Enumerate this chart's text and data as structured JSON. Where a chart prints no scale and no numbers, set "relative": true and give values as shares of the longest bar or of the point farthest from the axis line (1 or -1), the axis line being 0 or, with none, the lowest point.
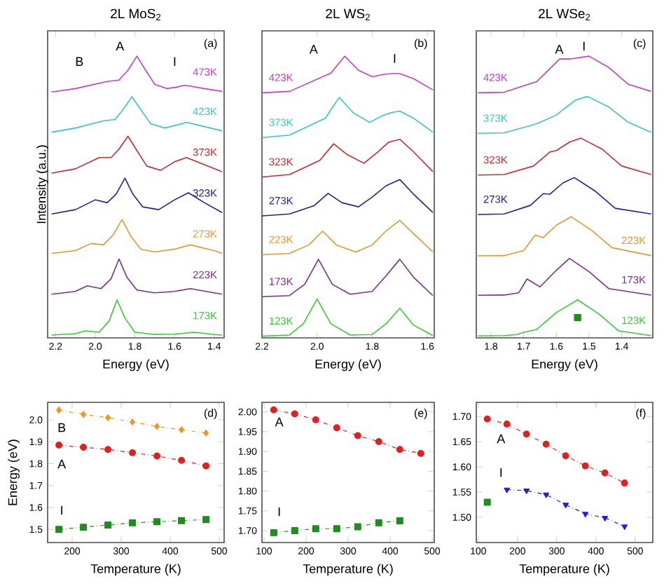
{
  "chart_data": [
    {
      "type": "line",
      "relative": true,
      "title": "2L MoS$_{2}$",
      "xlabel": "Energy (eV)",
      "ylabel": "Intensity (a.u.)",
      "xlim": [
        2.24,
        1.35
      ],
      "xticks": [
        2.2,
        {
          "value": 2.0,
          "label": "2.0"
        },
        1.8,
        1.6,
        1.4
      ],
      "annotations": [
        "(a)",
        "B",
        "A",
        "I"
      ],
      "series": [
        {
          "name": "173K",
          "color": "#33cc33",
          "x": [
            2.22,
            2.1,
            2.05,
            1.98,
            1.93,
            1.89,
            1.85,
            1.8,
            1.7,
            1.6,
            1.5,
            1.4,
            1.36
          ],
          "values": [
            0.01,
            0.015,
            0.025,
            0.02,
            0.06,
            0.135,
            0.07,
            0.02,
            0.012,
            0.013,
            0.02,
            0.012,
            0.01
          ]
        },
        {
          "name": "223K",
          "color": "#7b2d8e",
          "x": [
            2.22,
            2.1,
            2.04,
            1.97,
            1.92,
            1.88,
            1.84,
            1.79,
            1.7,
            1.6,
            1.52,
            1.4,
            1.36
          ],
          "values": [
            0.155,
            0.165,
            0.185,
            0.175,
            0.21,
            0.28,
            0.215,
            0.17,
            0.16,
            0.165,
            0.175,
            0.16,
            0.155
          ]
        },
        {
          "name": "273K",
          "color": "#e8962e",
          "x": [
            2.22,
            2.1,
            2.02,
            1.96,
            1.91,
            1.865,
            1.82,
            1.77,
            1.7,
            1.6,
            1.52,
            1.4,
            1.36
          ],
          "values": [
            0.3,
            0.31,
            0.335,
            0.33,
            0.365,
            0.42,
            0.36,
            0.315,
            0.305,
            0.315,
            0.33,
            0.31,
            0.3
          ]
        },
        {
          "name": "323K",
          "color": "#1f1f9e",
          "x": [
            2.22,
            2.1,
            2.0,
            1.94,
            1.895,
            1.85,
            1.81,
            1.76,
            1.68,
            1.6,
            1.53,
            1.45,
            1.36
          ],
          "values": [
            0.44,
            0.455,
            0.49,
            0.48,
            0.51,
            0.567,
            0.51,
            0.465,
            0.455,
            0.49,
            0.515,
            0.48,
            0.445
          ]
        },
        {
          "name": "373K",
          "color": "#d02828",
          "x": [
            2.22,
            2.1,
            1.98,
            1.92,
            1.88,
            1.835,
            1.79,
            1.74,
            1.67,
            1.6,
            1.54,
            1.45,
            1.36
          ],
          "values": [
            0.585,
            0.6,
            0.64,
            0.64,
            0.67,
            0.716,
            0.665,
            0.61,
            0.595,
            0.625,
            0.64,
            0.615,
            0.59
          ]
        },
        {
          "name": "423K",
          "color": "#33c6c6",
          "x": [
            2.22,
            2.1,
            1.96,
            1.9,
            1.86,
            1.815,
            1.77,
            1.72,
            1.65,
            1.59,
            1.54,
            1.45,
            1.36
          ],
          "values": [
            0.73,
            0.745,
            0.77,
            0.775,
            0.81,
            0.856,
            0.81,
            0.76,
            0.745,
            0.755,
            0.765,
            0.75,
            0.735
          ]
        },
        {
          "name": "473K",
          "color": "#c83cc8",
          "x": [
            2.22,
            2.1,
            1.94,
            1.88,
            1.835,
            1.79,
            1.75,
            1.7,
            1.64,
            1.59,
            1.55,
            1.45,
            1.36
          ],
          "values": [
            0.873,
            0.885,
            0.91,
            0.915,
            0.95,
            1.0,
            0.955,
            0.9,
            0.885,
            0.89,
            0.897,
            0.885,
            0.875
          ]
        }
      ]
    },
    {
      "type": "line",
      "relative": true,
      "title": "2L WS$_{2}$",
      "xlabel": "Energy (eV)",
      "xlim": [
        2.2,
        1.575
      ],
      "xticks": [
        2.2,
        {
          "value": 2.0,
          "label": "2.0"
        },
        1.8,
        1.6
      ],
      "annotations": [
        "(b)",
        "A",
        "I"
      ],
      "series": [
        {
          "name": "123K",
          "color": "#33cc33",
          "x": [
            2.2,
            2.1,
            2.05,
            2.0,
            1.95,
            1.88,
            1.8,
            1.75,
            1.7,
            1.65,
            1.58
          ],
          "values": [
            0.006,
            0.01,
            0.05,
            0.138,
            0.05,
            0.01,
            0.012,
            0.05,
            0.105,
            0.045,
            0.008
          ]
        },
        {
          "name": "173K",
          "color": "#7b2d8e",
          "x": [
            2.2,
            2.1,
            2.045,
            1.995,
            1.945,
            1.88,
            1.8,
            1.75,
            1.7,
            1.65,
            1.58
          ],
          "values": [
            0.146,
            0.15,
            0.19,
            0.279,
            0.19,
            0.155,
            0.165,
            0.22,
            0.279,
            0.215,
            0.15
          ]
        },
        {
          "name": "223K",
          "color": "#e8962e",
          "x": [
            2.2,
            2.1,
            2.03,
            1.98,
            1.93,
            1.86,
            1.8,
            1.75,
            1.7,
            1.65,
            1.58
          ],
          "values": [
            0.295,
            0.3,
            0.33,
            0.379,
            0.33,
            0.305,
            0.33,
            0.38,
            0.417,
            0.37,
            0.305
          ]
        },
        {
          "name": "273K",
          "color": "#1f1f9e",
          "x": [
            2.2,
            2.1,
            2.01,
            1.96,
            1.91,
            1.85,
            1.8,
            1.75,
            1.7,
            1.65,
            1.58
          ],
          "values": [
            0.433,
            0.44,
            0.47,
            0.513,
            0.48,
            0.465,
            0.5,
            0.54,
            0.562,
            0.51,
            0.445
          ]
        },
        {
          "name": "323K",
          "color": "#d02828",
          "x": [
            2.2,
            2.1,
            1.99,
            1.94,
            1.89,
            1.83,
            1.78,
            1.74,
            1.7,
            1.65,
            1.58
          ],
          "values": [
            0.571,
            0.58,
            0.63,
            0.689,
            0.65,
            0.62,
            0.66,
            0.695,
            0.705,
            0.66,
            0.59
          ]
        },
        {
          "name": "373K",
          "color": "#33c6c6",
          "x": [
            2.2,
            2.1,
            1.97,
            1.92,
            1.87,
            1.81,
            1.76,
            1.73,
            1.7,
            1.65,
            1.58
          ],
          "values": [
            0.711,
            0.72,
            0.78,
            0.854,
            0.8,
            0.765,
            0.79,
            0.8,
            0.805,
            0.78,
            0.73
          ]
        },
        {
          "name": "423K",
          "color": "#c83cc8",
          "x": [
            2.2,
            2.1,
            1.95,
            1.9,
            1.85,
            1.8,
            1.76,
            1.73,
            1.7,
            1.65,
            1.58
          ],
          "values": [
            0.87,
            0.875,
            0.94,
            1.0,
            0.95,
            0.927,
            0.935,
            0.938,
            0.938,
            0.92,
            0.88
          ]
        }
      ]
    },
    {
      "type": "line",
      "relative": true,
      "title": "2L WSe$_{2}$",
      "xlabel": "Energy (eV)",
      "xlim": [
        1.845,
        1.305
      ],
      "xticks": [
        1.8,
        1.7,
        1.6,
        1.5,
        1.4
      ],
      "annotations": [
        "(c)",
        "A",
        "I"
      ],
      "series": [
        {
          "name": "123K",
          "color": "#33cc33",
          "x": [
            1.84,
            1.76,
            1.72,
            1.7,
            1.66,
            1.6,
            1.535,
            1.47,
            1.41,
            1.31
          ],
          "values": [
            0.007,
            0.008,
            0.012,
            0.02,
            0.03,
            0.09,
            0.135,
            0.085,
            0.025,
            0.008
          ]
        },
        {
          "name": "173K",
          "color": "#7b2d8e",
          "x": [
            1.84,
            1.76,
            1.715,
            1.69,
            1.65,
            1.6,
            1.56,
            1.5,
            1.44,
            1.31
          ],
          "values": [
            0.151,
            0.152,
            0.16,
            0.209,
            0.181,
            0.24,
            0.282,
            0.235,
            0.175,
            0.152
          ]
        },
        {
          "name": "223K",
          "color": "#e8962e",
          "x": [
            1.84,
            1.76,
            1.7,
            1.665,
            1.64,
            1.6,
            1.555,
            1.49,
            1.43,
            1.31
          ],
          "values": [
            0.291,
            0.292,
            0.31,
            0.365,
            0.356,
            0.4,
            0.43,
            0.38,
            0.32,
            0.292
          ]
        },
        {
          "name": "273K",
          "color": "#1f1f9e",
          "x": [
            1.84,
            1.76,
            1.68,
            1.64,
            1.62,
            1.58,
            1.545,
            1.48,
            1.42,
            1.31
          ],
          "values": [
            0.438,
            0.44,
            0.47,
            0.512,
            0.51,
            0.55,
            0.569,
            0.52,
            0.46,
            0.44
          ]
        },
        {
          "name": "323K",
          "color": "#d02828",
          "x": [
            1.84,
            1.76,
            1.67,
            1.62,
            1.6,
            1.56,
            1.525,
            1.46,
            1.4,
            1.31
          ],
          "values": [
            0.578,
            0.58,
            0.61,
            0.66,
            0.665,
            0.695,
            0.709,
            0.67,
            0.61,
            0.58
          ]
        },
        {
          "name": "373K",
          "color": "#33c6c6",
          "x": [
            1.84,
            1.76,
            1.66,
            1.6,
            1.58,
            1.54,
            1.505,
            1.44,
            1.38,
            1.31
          ],
          "values": [
            0.726,
            0.728,
            0.76,
            0.791,
            0.81,
            0.845,
            0.857,
            0.82,
            0.765,
            0.73
          ]
        },
        {
          "name": "423K",
          "color": "#c83cc8",
          "x": [
            1.84,
            1.76,
            1.66,
            1.59,
            1.56,
            1.53,
            1.5,
            1.44,
            1.38,
            1.31
          ],
          "values": [
            0.87,
            0.872,
            0.91,
            0.99,
            0.99,
            0.995,
            1.0,
            0.96,
            0.9,
            0.875
          ]
        },
        {
          "type": "scatter",
          "marker": "square",
          "color": "#1e8c1e",
          "x": [
            1.535
          ],
          "values": [
            0.072
          ]
        }
      ]
    },
    {
      "type": "line",
      "xlabel": "Temperature (K)",
      "ylabel": "Energy (eV)",
      "xlim": [
        150,
        510
      ],
      "ylim": [
        1.44,
        2.08
      ],
      "xticks": [
        200,
        300,
        400,
        500
      ],
      "yticks": [
        1.5,
        1.6,
        1.7,
        1.8,
        1.9,
        {
          "value": 2.0,
          "label": "2.0"
        }
      ],
      "line_style": "dashed",
      "annotations": [
        "(d)",
        "B",
        "A",
        "I"
      ],
      "series": [
        {
          "color": "#f0961e",
          "marker": "diamond",
          "x": [
            173,
            223,
            273,
            323,
            373,
            423,
            473
          ],
          "values": [
            2.045,
            2.025,
            2.01,
            1.99,
            1.97,
            1.955,
            1.94
          ]
        },
        {
          "color": "#e02020",
          "marker": "circle",
          "x": [
            173,
            223,
            273,
            323,
            373,
            423,
            473
          ],
          "values": [
            1.885,
            1.875,
            1.865,
            1.85,
            1.835,
            1.815,
            1.79
          ]
        },
        {
          "color": "#1e8c1e",
          "marker": "square",
          "x": [
            173,
            223,
            273,
            323,
            373,
            423,
            473
          ],
          "values": [
            1.5,
            1.51,
            1.52,
            1.53,
            1.535,
            1.54,
            1.545
          ]
        }
      ]
    },
    {
      "type": "line",
      "xlabel": "Temperature (K)",
      "xlim": [
        95,
        505
      ],
      "ylim": [
        1.67,
        2.024
      ],
      "xticks": [
        100,
        200,
        300,
        400,
        500
      ],
      "yticks": [
        {
          "value": 1.7,
          "label": "1.70"
        },
        1.75,
        {
          "value": 1.8,
          "label": "1.80"
        },
        1.85,
        {
          "value": 1.9,
          "label": "1.90"
        },
        1.95,
        {
          "value": 2.0,
          "label": "2.00"
        }
      ],
      "line_style": "dashed",
      "annotations": [
        "(e)",
        "A",
        "I"
      ],
      "series": [
        {
          "color": "#e02020",
          "marker": "circle",
          "x": [
            123,
            173,
            223,
            273,
            323,
            373,
            423,
            473
          ],
          "values": [
            2.005,
            1.995,
            1.98,
            1.96,
            1.94,
            1.925,
            1.905,
            1.895
          ]
        },
        {
          "color": "#1e8c1e",
          "marker": "square",
          "x": [
            123,
            173,
            223,
            273,
            323,
            373,
            423
          ],
          "values": [
            1.695,
            1.7,
            1.705,
            1.705,
            1.71,
            1.72,
            1.725
          ]
        }
      ]
    },
    {
      "type": "line",
      "xlabel": "Temperature (K)",
      "xlim": [
        95,
        545
      ],
      "ylim": [
        1.45,
        1.728
      ],
      "xticks": [
        100,
        200,
        300,
        400,
        500
      ],
      "yticks": [
        {
          "value": 1.5,
          "label": "1.50"
        },
        1.55,
        {
          "value": 1.6,
          "label": "1.60"
        },
        1.65,
        {
          "value": 1.7,
          "label": "1.70"
        }
      ],
      "line_style": "dashed",
      "annotations": [
        "(f)",
        "A",
        "I"
      ],
      "series": [
        {
          "color": "#e02020",
          "marker": "circle",
          "x": [
            123,
            173,
            223,
            273,
            323,
            373,
            423,
            473
          ],
          "values": [
            1.695,
            1.685,
            1.665,
            1.645,
            1.622,
            1.602,
            1.588,
            1.568
          ]
        },
        {
          "color": "#1e1ee0",
          "marker": "triangle",
          "x": [
            173,
            223,
            273,
            323,
            373,
            423,
            473
          ],
          "values": [
            1.555,
            1.553,
            1.545,
            1.525,
            1.507,
            1.499,
            1.482
          ]
        },
        {
          "type": "scatter",
          "color": "#1e8c1e",
          "marker": "square",
          "x": [
            123
          ],
          "values": [
            1.53
          ]
        }
      ]
    }
  ]
}
